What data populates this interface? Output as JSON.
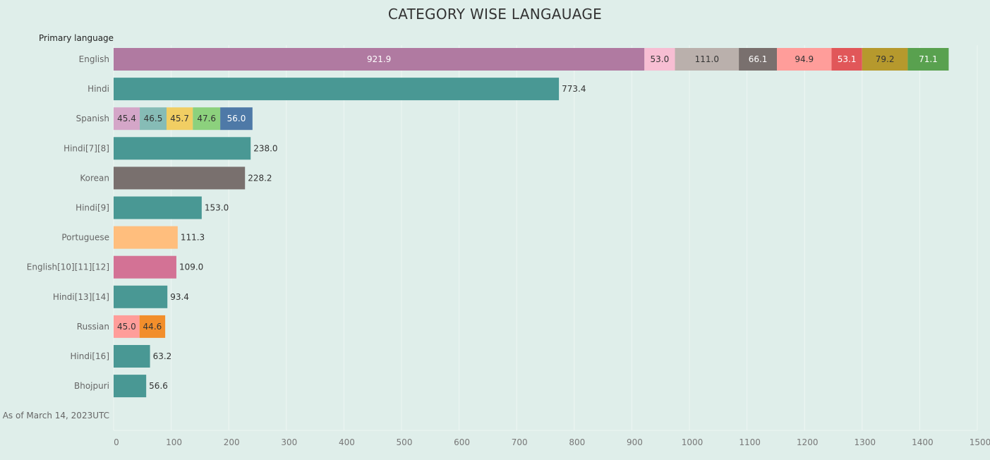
{
  "chart_data": {
    "type": "bar",
    "orientation": "horizontal",
    "stacked": true,
    "title": "CATEGORY WISE LANGAUAGE",
    "ylabel": "Primary language",
    "xlabel": "",
    "xlim": [
      0,
      1500
    ],
    "xticks": [
      0,
      100,
      200,
      300,
      400,
      500,
      600,
      700,
      800,
      900,
      1000,
      1100,
      1200,
      1300,
      1400,
      1500
    ],
    "grid": true,
    "categories": [
      "English",
      "Hindi",
      "Spanish",
      "Hindi[7][8]",
      "Korean",
      "Hindi[9]",
      "Portuguese",
      "English[10][11][12]",
      "Hindi[13][14]",
      "Russian",
      "Hindi[16]",
      "Bhojpuri",
      "As of March 14, 2023UTC"
    ],
    "rows": [
      {
        "segments": [
          {
            "value": 921.9,
            "color": "#b07aa1",
            "label_color": "#ffffff"
          },
          {
            "value": 53.0,
            "color": "#f7bed3",
            "label_color": "#333333"
          },
          {
            "value": 111.0,
            "color": "#bab0ac",
            "label_color": "#333333"
          },
          {
            "value": 66.1,
            "color": "#79706e",
            "label_color": "#ffffff"
          },
          {
            "value": 94.9,
            "color": "#ff9d9a",
            "label_color": "#333333"
          },
          {
            "value": 53.1,
            "color": "#e15759",
            "label_color": "#ffffff"
          },
          {
            "value": 79.2,
            "color": "#b6992d",
            "label_color": "#333333"
          },
          {
            "value": 71.1,
            "color": "#59a14f",
            "label_color": "#ffffff"
          }
        ]
      },
      {
        "segments": [
          {
            "value": 773.4,
            "color": "#499894",
            "label_outside": true
          }
        ]
      },
      {
        "segments": [
          {
            "value": 45.4,
            "color": "#d4a6c8",
            "label_color": "#333333"
          },
          {
            "value": 46.5,
            "color": "#86bcb6",
            "label_color": "#333333"
          },
          {
            "value": 45.7,
            "color": "#f1ce63",
            "label_color": "#333333"
          },
          {
            "value": 47.6,
            "color": "#8cd17d",
            "label_color": "#333333"
          },
          {
            "value": 56.0,
            "color": "#4e79a7",
            "label_color": "#ffffff"
          }
        ]
      },
      {
        "segments": [
          {
            "value": 238.0,
            "color": "#499894",
            "label_outside": true
          }
        ]
      },
      {
        "segments": [
          {
            "value": 228.2,
            "color": "#79706e",
            "label_outside": true
          }
        ]
      },
      {
        "segments": [
          {
            "value": 153.0,
            "color": "#499894",
            "label_outside": true
          }
        ]
      },
      {
        "segments": [
          {
            "value": 111.3,
            "color": "#ffbe7d",
            "label_outside": true
          }
        ]
      },
      {
        "segments": [
          {
            "value": 109.0,
            "color": "#d37295",
            "label_outside": true
          }
        ]
      },
      {
        "segments": [
          {
            "value": 93.4,
            "color": "#499894",
            "label_outside": true
          }
        ]
      },
      {
        "segments": [
          {
            "value": 45.0,
            "color": "#ff9d9a",
            "label_color": "#333333"
          },
          {
            "value": 44.6,
            "color": "#f28e2b",
            "label_color": "#333333"
          }
        ]
      },
      {
        "segments": [
          {
            "value": 63.2,
            "color": "#499894",
            "label_outside": true
          }
        ]
      },
      {
        "segments": [
          {
            "value": 56.6,
            "color": "#499894",
            "label_outside": true
          }
        ]
      },
      {
        "segments": []
      }
    ],
    "background_color": "#dfeeea",
    "gridline_color": "#eef6f3"
  }
}
